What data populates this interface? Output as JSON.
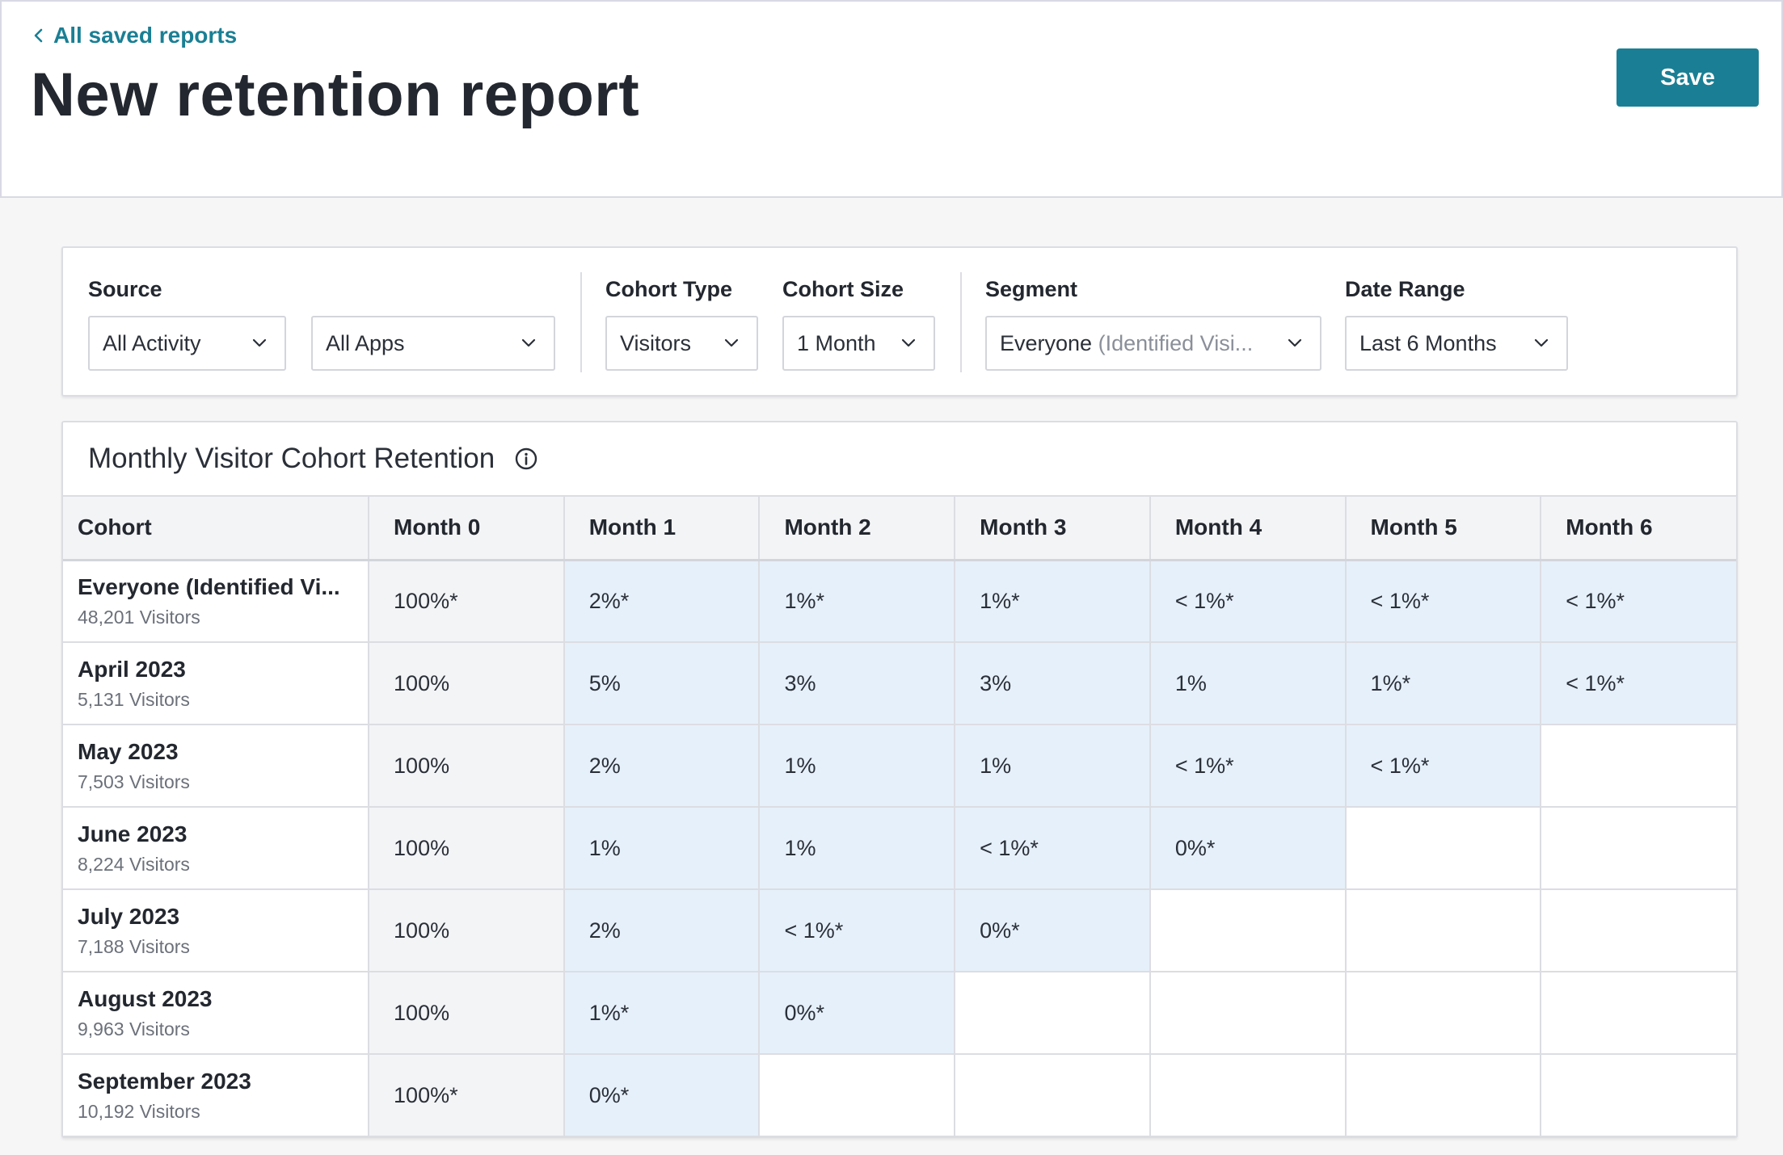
{
  "header": {
    "back_link": "All saved reports",
    "title": "New retention report",
    "save_label": "Save"
  },
  "filters": {
    "source_label": "Source",
    "source_activity": "All Activity",
    "source_apps": "All Apps",
    "cohort_type_label": "Cohort Type",
    "cohort_type_value": "Visitors",
    "cohort_size_label": "Cohort Size",
    "cohort_size_value": "1 Month",
    "segment_label": "Segment",
    "segment_value": "Everyone",
    "segment_value_muted": "(Identified Visi...",
    "date_range_label": "Date Range",
    "date_range_value": "Last 6 Months"
  },
  "table": {
    "title": "Monthly Visitor Cohort Retention",
    "columns": [
      "Cohort",
      "Month 0",
      "Month 1",
      "Month 2",
      "Month 3",
      "Month 4",
      "Month 5",
      "Month 6"
    ],
    "rows": [
      {
        "name": "Everyone (Identified Vi...",
        "visitors": "48,201 Visitors",
        "values": [
          "100%*",
          "2%*",
          "1%*",
          "1%*",
          "< 1%*",
          "< 1%*",
          "< 1%*"
        ]
      },
      {
        "name": "April 2023",
        "visitors": "5,131 Visitors",
        "values": [
          "100%",
          "5%",
          "3%",
          "3%",
          "1%",
          "1%*",
          "< 1%*"
        ]
      },
      {
        "name": "May 2023",
        "visitors": "7,503 Visitors",
        "values": [
          "100%",
          "2%",
          "1%",
          "1%",
          "< 1%*",
          "< 1%*",
          ""
        ]
      },
      {
        "name": "June 2023",
        "visitors": "8,224 Visitors",
        "values": [
          "100%",
          "1%",
          "1%",
          "< 1%*",
          "0%*",
          "",
          ""
        ]
      },
      {
        "name": "July 2023",
        "visitors": "7,188 Visitors",
        "values": [
          "100%",
          "2%",
          "< 1%*",
          "0%*",
          "",
          "",
          ""
        ]
      },
      {
        "name": "August 2023",
        "visitors": "9,963 Visitors",
        "values": [
          "100%",
          "1%*",
          "0%*",
          "",
          "",
          "",
          ""
        ]
      },
      {
        "name": "September 2023",
        "visitors": "10,192 Visitors",
        "values": [
          "100%*",
          "0%*",
          "",
          "",
          "",
          "",
          ""
        ]
      }
    ]
  },
  "colors": {
    "accent": "#1a7f94",
    "filled_cell": "#e6f0fa",
    "month0_cell": "#f3f4f6"
  }
}
